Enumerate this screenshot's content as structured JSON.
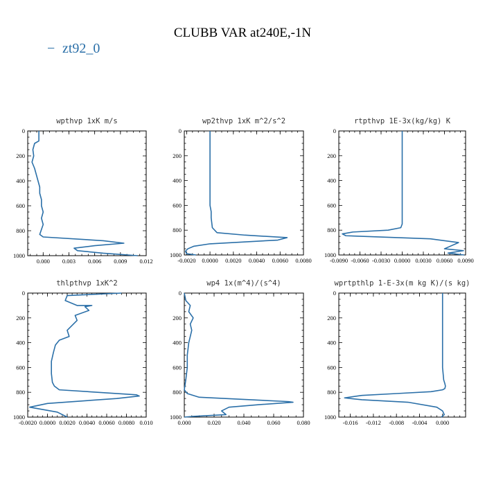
{
  "chart_data": {
    "type": "line",
    "title": "CLUBB VAR at240E,-1N",
    "legend": {
      "entries": [
        {
          "name": "zt92_0",
          "color": "#2a6fa8",
          "symbol": "−"
        }
      ],
      "placement": "top-left"
    },
    "y_axis": {
      "range": [
        0,
        1000
      ],
      "inverted": true,
      "ticks": [
        0,
        200,
        400,
        600,
        800,
        1000
      ]
    },
    "panels": [
      {
        "id": "wpthvp",
        "title": "wpthvp   1xK  m/s",
        "xlim": [
          -0.0018,
          0.012
        ],
        "xticks": [
          0.0,
          0.003,
          0.006,
          0.009,
          0.012
        ],
        "xtick_labels": [
          "0.000",
          "0.003",
          "0.006",
          "0.009",
          "0.012"
        ],
        "x": [
          -0.0005,
          -0.0005,
          -0.001,
          -0.0012,
          -0.0011,
          -0.0013,
          -0.001,
          -0.0008,
          -0.0006,
          -0.0004,
          -0.0004,
          -0.0002,
          -0.0002,
          0.0,
          -0.0002,
          0.0,
          -0.0004,
          0.0,
          0.007,
          0.0094,
          0.006,
          0.0036,
          0.004,
          0.007,
          0.011
        ],
        "y": [
          0,
          80,
          100,
          150,
          200,
          250,
          300,
          350,
          400,
          450,
          500,
          550,
          600,
          650,
          700,
          750,
          830,
          850,
          880,
          900,
          920,
          940,
          960,
          980,
          1000
        ]
      },
      {
        "id": "wp2thvp",
        "title": "wp2thvp   1xK  m^2/s^2",
        "xlim": [
          -0.0022,
          0.008
        ],
        "xticks": [
          -0.002,
          0.0,
          0.002,
          0.004,
          0.006,
          0.008
        ],
        "xtick_labels": [
          "-0.0020",
          "0.0000",
          "0.0020",
          "0.0040",
          "0.0060",
          "0.0080"
        ],
        "x": [
          0.0,
          0.0,
          0.0,
          0.0,
          0.0,
          0.0,
          0.0001,
          0.0001,
          0.0002,
          0.0006,
          0.003,
          0.0066,
          0.0058,
          0.0,
          -0.0014,
          -0.0019,
          -0.0021,
          -0.002,
          -0.0012
        ],
        "y": [
          0,
          200,
          400,
          500,
          550,
          600,
          650,
          700,
          780,
          820,
          840,
          860,
          880,
          910,
          930,
          950,
          970,
          990,
          1000
        ]
      },
      {
        "id": "rtpthvp",
        "title": "rtpthvp   1E-3x(kg/kg) K",
        "xlim": [
          -0.009,
          0.009
        ],
        "xticks": [
          -0.009,
          -0.006,
          -0.003,
          0.0,
          0.003,
          0.006,
          0.009
        ],
        "xtick_labels": [
          "-0.0090",
          "-0.0060",
          "-0.0030",
          "0.0000",
          "0.0030",
          "0.0060",
          "0.0090"
        ],
        "x": [
          0.0,
          0.0,
          0.0,
          0.0,
          0.0,
          -0.0002,
          -0.002,
          -0.007,
          -0.0085,
          -0.008,
          0.004,
          0.008,
          0.006,
          0.0087,
          0.0065,
          0.0088
        ],
        "y": [
          0,
          200,
          400,
          600,
          750,
          780,
          800,
          815,
          830,
          845,
          870,
          900,
          950,
          965,
          985,
          1000
        ]
      },
      {
        "id": "thlpthvp",
        "title": "thlpthvp   1xK^2",
        "xlim": [
          -0.002,
          0.01
        ],
        "xticks": [
          -0.002,
          0.0,
          0.002,
          0.004,
          0.006,
          0.008,
          0.01
        ],
        "xtick_labels": [
          "-0.0020",
          "0.0000",
          "0.0020",
          "0.0040",
          "0.0060",
          "0.0080",
          "0.010"
        ],
        "x": [
          0.0075,
          0.002,
          0.0018,
          0.003,
          0.0045,
          0.0038,
          0.0042,
          0.0028,
          0.003,
          0.0025,
          0.002,
          0.0022,
          0.0012,
          0.0008,
          0.0006,
          0.0004,
          0.0004,
          0.0005,
          0.0007,
          0.0012,
          0.009,
          0.0093,
          0.007,
          0.0,
          -0.0018,
          0.001,
          0.002
        ],
        "y": [
          0,
          20,
          60,
          100,
          100,
          110,
          140,
          180,
          220,
          260,
          300,
          350,
          380,
          420,
          480,
          550,
          650,
          720,
          750,
          780,
          820,
          830,
          850,
          890,
          920,
          960,
          1000
        ]
      },
      {
        "id": "wp4",
        "title": "wp4   1x(m^4)/(s^4)",
        "xlim": [
          0.0,
          0.08
        ],
        "xticks": [
          0.0,
          0.02,
          0.04,
          0.06,
          0.08
        ],
        "xtick_labels": [
          "0.000",
          "0.020",
          "0.040",
          "0.060",
          "0.080"
        ],
        "x": [
          0.0,
          0.001,
          0.004,
          0.003,
          0.006,
          0.004,
          0.005,
          0.004,
          0.003,
          0.002,
          0.002,
          0.001,
          0.0,
          0.002,
          0.01,
          0.07,
          0.073,
          0.05,
          0.03,
          0.025,
          0.028,
          0.005,
          0.0
        ],
        "y": [
          0,
          60,
          100,
          150,
          200,
          250,
          300,
          350,
          400,
          500,
          600,
          700,
          780,
          810,
          840,
          875,
          880,
          900,
          920,
          950,
          980,
          995,
          1000
        ]
      },
      {
        "id": "wprtpthlp",
        "title": "wprtpthlp   1-E-3x(m kg K)/(s kg)",
        "xlim": [
          -0.018,
          0.004
        ],
        "xticks": [
          -0.016,
          -0.012,
          -0.008,
          -0.004,
          0.0
        ],
        "xtick_labels": [
          "-0.016",
          "-0.012",
          "-0.008",
          "-0.004",
          "0.000"
        ],
        "x": [
          0.0,
          0.0,
          0.0,
          0.0,
          0.0001,
          0.0002,
          0.0004,
          0.0005,
          0.0004,
          0.0,
          -0.002,
          -0.008,
          -0.014,
          -0.017,
          -0.014,
          -0.006,
          -0.001,
          0.0,
          0.0003,
          -0.0002
        ],
        "y": [
          0,
          200,
          400,
          600,
          650,
          700,
          730,
          750,
          770,
          780,
          795,
          810,
          825,
          845,
          860,
          880,
          920,
          950,
          980,
          1000
        ]
      }
    ]
  }
}
